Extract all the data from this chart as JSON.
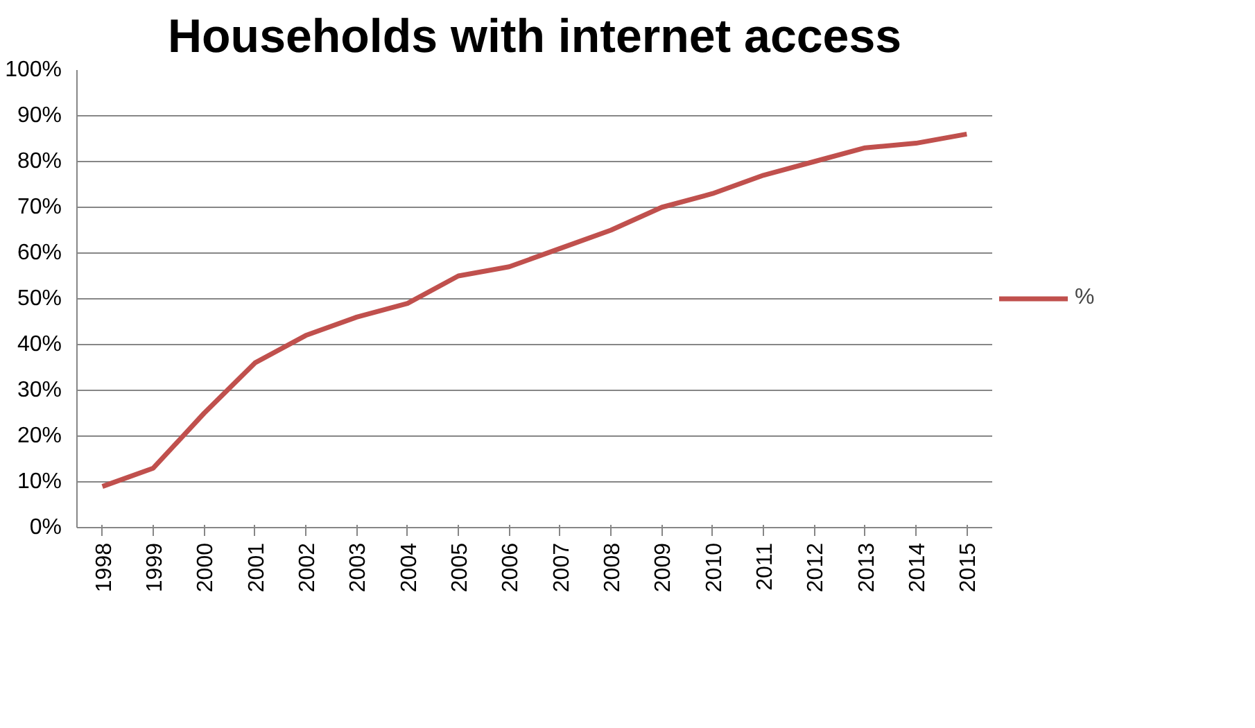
{
  "chart_data": {
    "type": "line",
    "title": "Households with internet access",
    "categories": [
      "1998",
      "1999",
      "2000",
      "2001",
      "2002",
      "2003",
      "2004",
      "2005",
      "2006",
      "2007",
      "2008",
      "2009",
      "2010",
      "2011",
      "2012",
      "2013",
      "2014",
      "2015"
    ],
    "series": [
      {
        "name": "%",
        "color": "#c0504d",
        "values": [
          9,
          13,
          25,
          36,
          42,
          46,
          49,
          55,
          57,
          61,
          65,
          70,
          73,
          77,
          80,
          83,
          84,
          86
        ]
      }
    ],
    "ylim": [
      0,
      100
    ],
    "yticks": [
      {
        "value": 0,
        "label": "0%"
      },
      {
        "value": 10,
        "label": "10%"
      },
      {
        "value": 20,
        "label": "20%"
      },
      {
        "value": 30,
        "label": "30%"
      },
      {
        "value": 40,
        "label": "40%"
      },
      {
        "value": 50,
        "label": "50%"
      },
      {
        "value": 60,
        "label": "60%"
      },
      {
        "value": 70,
        "label": "70%"
      },
      {
        "value": 80,
        "label": "80%"
      },
      {
        "value": 90,
        "label": "90%"
      },
      {
        "value": 100,
        "label": "100%"
      }
    ],
    "grid": "y",
    "legend": "right",
    "marker": "none",
    "line_style": "solid"
  }
}
